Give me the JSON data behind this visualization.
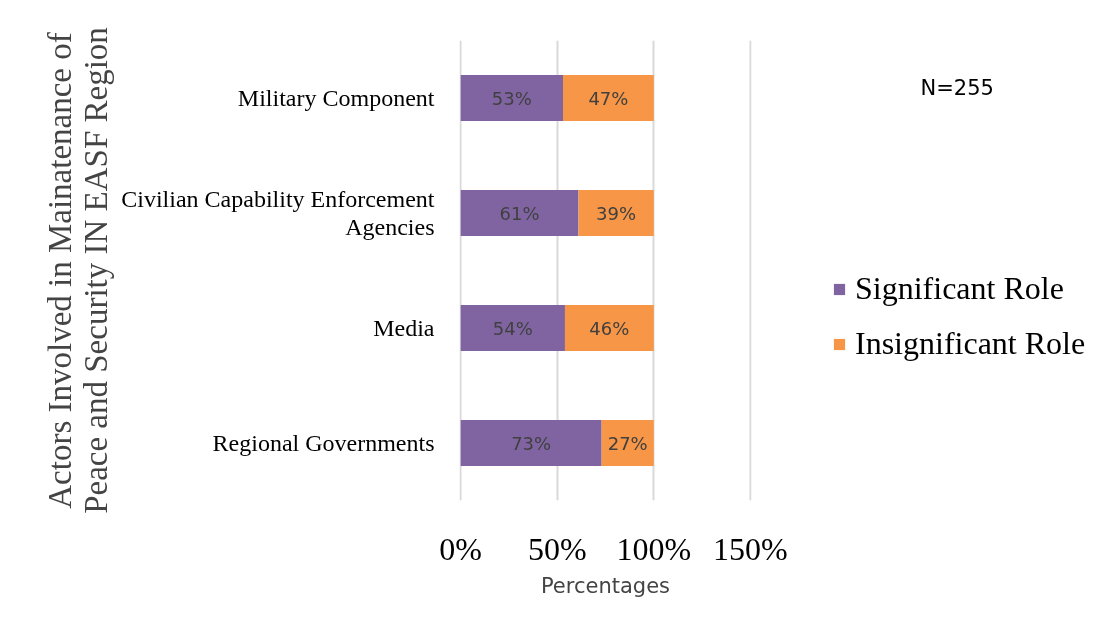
{
  "chart_data": {
    "type": "bar",
    "orientation": "horizontal",
    "stacked": true,
    "categories": [
      "Military Component",
      "Civilian Capability Enforcement Agencies",
      "Media",
      "Regional Governments"
    ],
    "series": [
      {
        "name": "Significant Role",
        "color": "#8064a2",
        "values": [
          53,
          61,
          54,
          73
        ],
        "value_labels": [
          "53%",
          "61%",
          "54%",
          "73%"
        ]
      },
      {
        "name": "Insignificant Role",
        "color": "#f79646",
        "values": [
          47,
          39,
          46,
          27
        ],
        "value_labels": [
          "47%",
          "39%",
          "46%",
          "27%"
        ]
      }
    ],
    "xlabel": "Percentages",
    "ylabel": "Actors Involved in Mainatenance of Peace and Security IN EASF Region",
    "xlim": [
      0,
      150
    ],
    "xticks": [
      {
        "value": 0,
        "label": "0%"
      },
      {
        "value": 50,
        "label": "50%"
      },
      {
        "value": 100,
        "label": "100%"
      },
      {
        "value": 150,
        "label": "150%"
      }
    ],
    "grid": "x",
    "legend": "right",
    "annotations": [
      "N=255"
    ]
  }
}
